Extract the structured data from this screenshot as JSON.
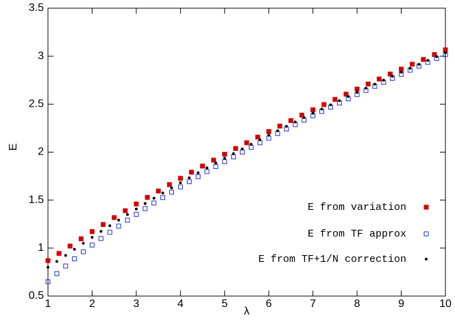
{
  "chart_data": {
    "type": "scatter",
    "xlabel": "λ",
    "ylabel": "E",
    "xlim": [
      1,
      10
    ],
    "ylim": [
      0.5,
      3.5
    ],
    "xticks": [
      1,
      2,
      3,
      4,
      5,
      6,
      7,
      8,
      9,
      10
    ],
    "yticks": [
      0.5,
      1,
      1.5,
      2,
      2.5,
      3,
      3.5
    ],
    "legend": "lower right",
    "series": [
      {
        "name": "E from variation",
        "color": "#d40000",
        "marker": "filled-square",
        "x": [
          1,
          1.25,
          1.5,
          1.75,
          2,
          2.25,
          2.5,
          2.75,
          3,
          3.25,
          3.5,
          3.75,
          4,
          4.25,
          4.5,
          4.75,
          5,
          5.25,
          5.5,
          5.75,
          6,
          6.25,
          6.5,
          6.75,
          7,
          7.25,
          7.5,
          7.75,
          8,
          8.25,
          8.5,
          8.75,
          9,
          9.25,
          9.5,
          9.75,
          10
        ],
        "values": [
          0.87,
          0.944,
          1.021,
          1.097,
          1.172,
          1.246,
          1.318,
          1.39,
          1.46,
          1.528,
          1.595,
          1.662,
          1.727,
          1.791,
          1.855,
          1.917,
          1.978,
          2.038,
          2.098,
          2.157,
          2.215,
          2.272,
          2.329,
          2.386,
          2.441,
          2.496,
          2.55,
          2.604,
          2.657,
          2.71,
          2.762,
          2.814,
          2.865,
          2.916,
          2.966,
          3.017,
          3.066
        ]
      },
      {
        "name": "E from TF approx",
        "color": "#2030d0",
        "marker": "open-square",
        "x": [
          1,
          1.2,
          1.4,
          1.6,
          1.8,
          2,
          2.2,
          2.4,
          2.6,
          2.8,
          3,
          3.2,
          3.4,
          3.6,
          3.8,
          4,
          4.2,
          4.4,
          4.6,
          4.8,
          5,
          5.2,
          5.4,
          5.6,
          5.8,
          6,
          6.2,
          6.4,
          6.6,
          6.8,
          7,
          7.2,
          7.4,
          7.6,
          7.8,
          8,
          8.2,
          8.4,
          8.6,
          8.8,
          9,
          9.2,
          9.4,
          9.6,
          9.8,
          10
        ],
        "values": [
          0.65,
          0.734,
          0.813,
          0.889,
          0.962,
          1.032,
          1.1,
          1.165,
          1.229,
          1.291,
          1.352,
          1.412,
          1.47,
          1.527,
          1.583,
          1.638,
          1.692,
          1.745,
          1.798,
          1.85,
          1.901,
          1.951,
          2.001,
          2.05,
          2.098,
          2.146,
          2.194,
          2.241,
          2.287,
          2.333,
          2.379,
          2.424,
          2.468,
          2.512,
          2.556,
          2.6,
          2.643,
          2.686,
          2.728,
          2.77,
          2.812,
          2.854,
          2.895,
          2.936,
          2.977,
          3.017
        ]
      },
      {
        "name": "E from TF+1/N correction",
        "color": "#000000",
        "marker": "dot",
        "x": [
          1,
          1.2,
          1.4,
          1.6,
          1.8,
          2,
          2.2,
          2.4,
          2.6,
          2.8,
          3,
          3.2,
          3.4,
          3.6,
          3.8,
          4,
          4.2,
          4.4,
          4.6,
          4.8,
          5,
          5.2,
          5.4,
          5.6,
          5.8,
          6,
          6.2,
          6.4,
          6.6,
          6.8,
          7,
          7.2,
          7.4,
          7.6,
          7.8,
          8,
          8.2,
          8.4,
          8.6,
          8.8,
          9,
          9.2,
          9.4,
          9.6,
          9.8,
          10
        ],
        "values": [
          0.8,
          0.861,
          0.924,
          0.987,
          1.05,
          1.112,
          1.174,
          1.233,
          1.292,
          1.35,
          1.408,
          1.465,
          1.52,
          1.574,
          1.628,
          1.681,
          1.733,
          1.785,
          1.836,
          1.887,
          1.936,
          1.985,
          2.034,
          2.082,
          2.129,
          2.176,
          2.223,
          2.269,
          2.314,
          2.36,
          2.405,
          2.449,
          2.493,
          2.536,
          2.58,
          2.623,
          2.666,
          2.708,
          2.75,
          2.791,
          2.833,
          2.874,
          2.915,
          2.956,
          2.996,
          3.036
        ]
      }
    ]
  }
}
